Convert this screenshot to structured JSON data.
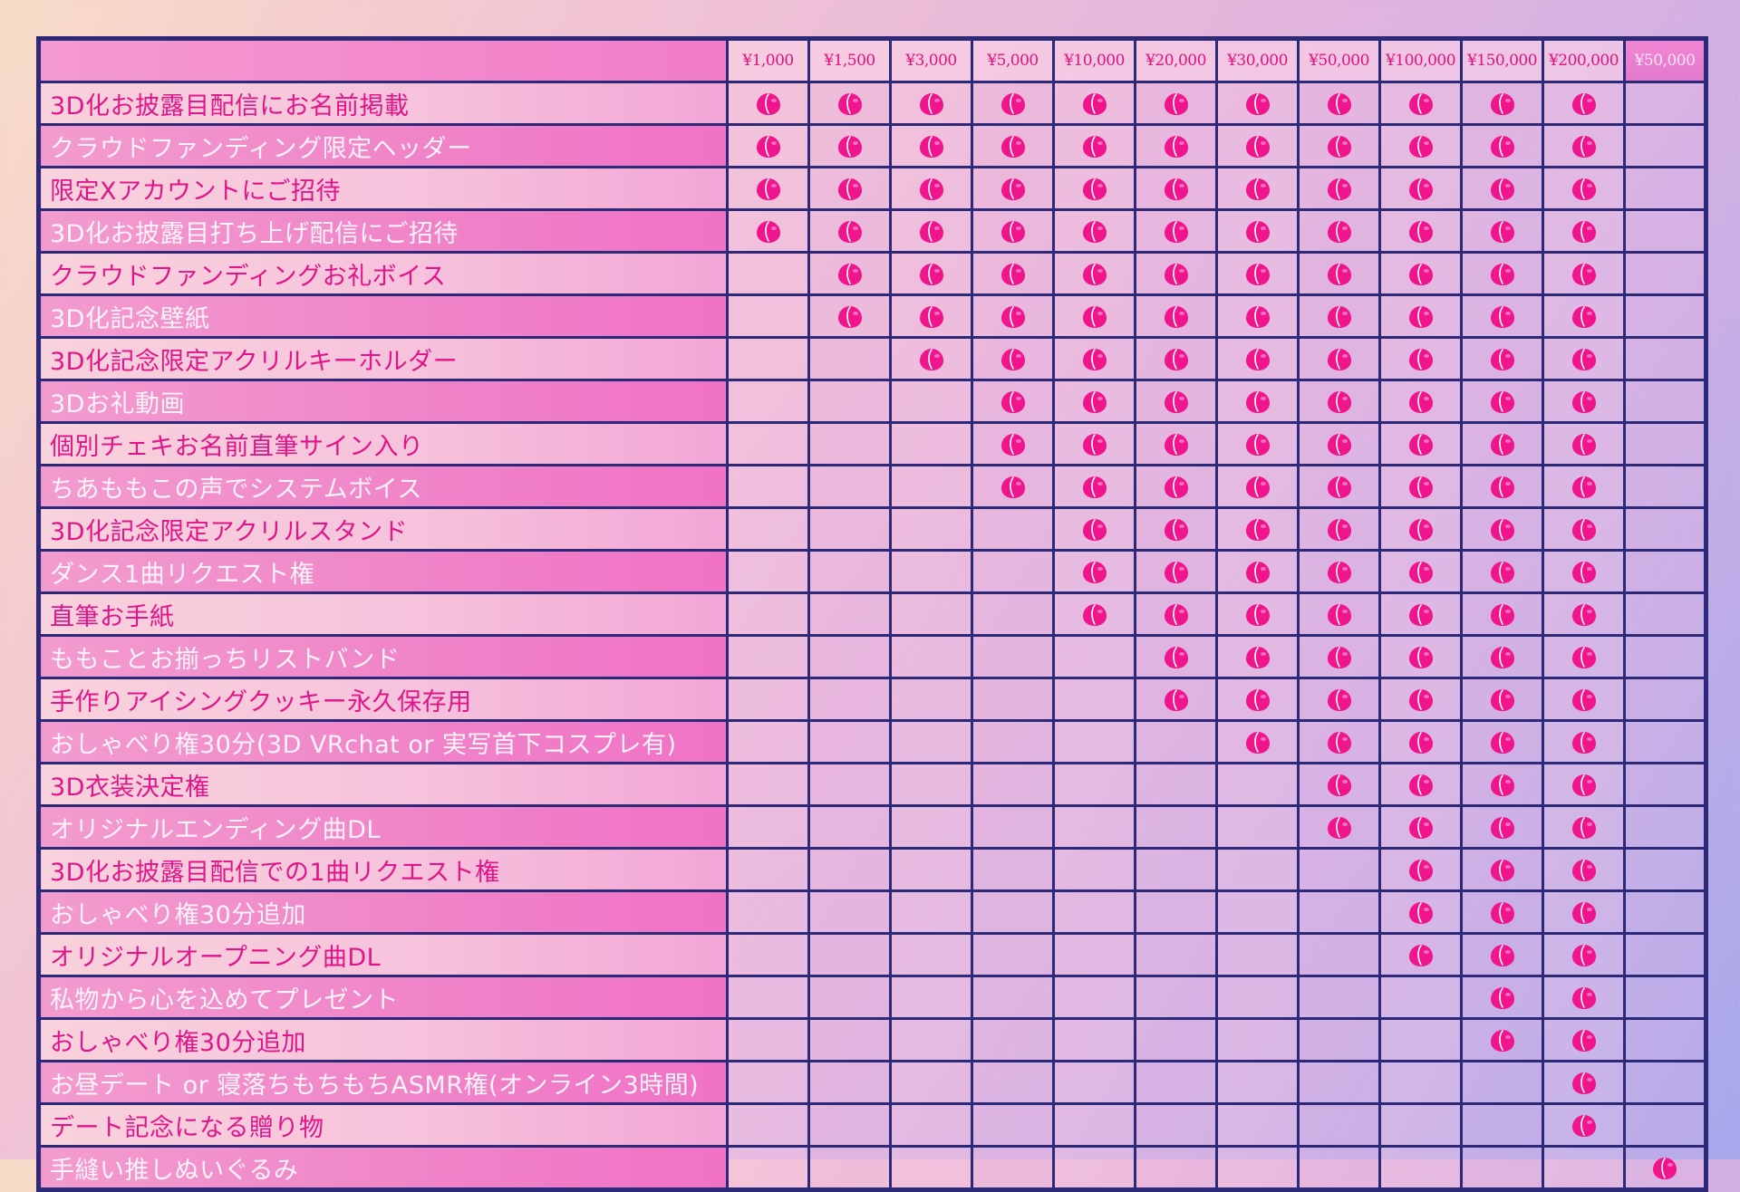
{
  "tiers": [
    "¥1,000",
    "¥1,500",
    "¥3,000",
    "¥5,000",
    "¥10,000",
    "¥20,000",
    "¥30,000",
    "¥50,000",
    "¥100,000",
    "¥150,000",
    "¥200,000",
    "¥50,000"
  ],
  "rows": [
    {
      "label": "3D化お披露目配信にお名前掲載",
      "from": 0,
      "to": 10
    },
    {
      "label": "クラウドファンディング限定ヘッダー",
      "from": 0,
      "to": 10
    },
    {
      "label": "限定Xアカウントにご招待",
      "from": 0,
      "to": 10
    },
    {
      "label": "3D化お披露目打ち上げ配信にご招待",
      "from": 0,
      "to": 10
    },
    {
      "label": "クラウドファンディングお礼ボイス",
      "from": 1,
      "to": 10
    },
    {
      "label": "3D化記念壁紙",
      "from": 1,
      "to": 10
    },
    {
      "label": "3D化記念限定アクリルキーホルダー",
      "from": 2,
      "to": 10
    },
    {
      "label": "3Dお礼動画",
      "from": 3,
      "to": 10
    },
    {
      "label": "個別チェキお名前直筆サイン入り",
      "from": 3,
      "to": 10
    },
    {
      "label": "ちあももこの声でシステムボイス",
      "from": 3,
      "to": 10
    },
    {
      "label": "3D化記念限定アクリルスタンド",
      "from": 4,
      "to": 10
    },
    {
      "label": "ダンス1曲リクエスト権",
      "from": 4,
      "to": 10
    },
    {
      "label": "直筆お手紙",
      "from": 4,
      "to": 10
    },
    {
      "label": "ももことお揃っちリストバンド",
      "from": 5,
      "to": 10
    },
    {
      "label": "手作りアイシングクッキー永久保存用",
      "from": 5,
      "to": 10
    },
    {
      "label": "おしゃべり権30分(3D VRchat or 実写首下コスプレ有)",
      "from": 6,
      "to": 10
    },
    {
      "label": "3D衣装決定権",
      "from": 7,
      "to": 10
    },
    {
      "label": "オリジナルエンディング曲DL",
      "from": 7,
      "to": 10
    },
    {
      "label": "3D化お披露目配信での1曲リクエスト権",
      "from": 8,
      "to": 10
    },
    {
      "label": "おしゃべり権30分追加",
      "from": 8,
      "to": 10
    },
    {
      "label": "オリジナルオープニング曲DL",
      "from": 8,
      "to": 10
    },
    {
      "label": "私物から心を込めてプレゼント",
      "from": 9,
      "to": 10
    },
    {
      "label": "おしゃべり権30分追加",
      "from": 9,
      "to": 10
    },
    {
      "label": "お昼デート or 寝落ちもちもちASMR権(オンライン3時間)",
      "from": 10,
      "to": 10
    },
    {
      "label": "デート記念になる贈り物",
      "from": 10,
      "to": 10
    },
    {
      "label": "手縫い推しぬいぐるみ",
      "from": 11,
      "to": 11
    }
  ],
  "colors": {
    "border": "#2c2a78",
    "label_text": "#e2148a",
    "peach": "#f0158c",
    "peach_highlight": "#ff6fbf"
  },
  "icons": {
    "included_mark": "peach-icon"
  }
}
